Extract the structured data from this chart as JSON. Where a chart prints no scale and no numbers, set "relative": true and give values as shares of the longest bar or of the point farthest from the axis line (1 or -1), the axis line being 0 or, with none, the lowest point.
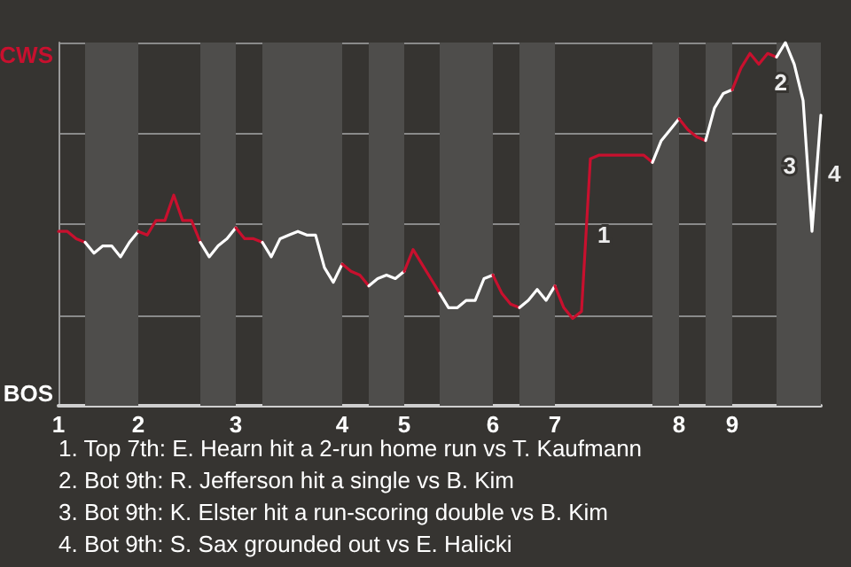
{
  "chart_data": {
    "type": "line",
    "categories": [
      "1",
      null,
      null,
      null,
      null,
      null,
      null,
      null,
      null,
      "2",
      null,
      null,
      null,
      null,
      null,
      null,
      null,
      null,
      null,
      null,
      "3",
      null,
      null,
      null,
      null,
      null,
      null,
      null,
      null,
      null,
      null,
      null,
      "4",
      null,
      null,
      null,
      null,
      null,
      null,
      "5",
      null,
      null,
      null,
      null,
      null,
      null,
      null,
      null,
      null,
      "6",
      null,
      null,
      null,
      null,
      null,
      null,
      "7",
      null,
      null,
      null,
      null,
      null,
      null,
      null,
      null,
      null,
      null,
      null,
      null,
      null,
      "8",
      null,
      null,
      null,
      null,
      null,
      "9",
      null,
      null,
      null,
      null,
      null,
      null,
      null,
      null,
      null,
      null
    ],
    "relative": true,
    "series": [
      {
        "color": "#c8102e",
        "values": [
          0.48,
          0.48,
          0.46,
          0.45,
          null,
          null,
          null,
          null,
          null,
          null,
          null,
          null,
          null,
          null,
          null,
          null,
          null,
          null,
          null,
          null,
          null,
          null,
          null,
          null,
          null,
          null,
          null,
          null,
          null,
          null,
          null,
          null,
          null,
          null,
          null,
          null,
          null,
          null,
          null,
          null,
          null,
          null,
          null,
          null,
          null,
          null,
          null,
          null,
          null,
          null,
          null,
          null,
          null,
          null,
          null,
          null,
          null,
          null,
          null,
          null,
          null,
          null,
          null,
          null,
          null,
          null,
          null,
          null,
          null,
          null,
          null,
          null,
          null,
          null,
          null,
          null,
          null,
          null,
          null,
          null,
          null,
          null,
          null,
          null,
          null,
          null,
          null
        ]
      },
      {
        "color": "#ffffff",
        "values": [
          null,
          null,
          null,
          0.45,
          0.42,
          0.44,
          0.44,
          0.41,
          0.45,
          0.48,
          null,
          null,
          null,
          null,
          null,
          null,
          null,
          null,
          null,
          null,
          null,
          null,
          null,
          null,
          null,
          null,
          null,
          null,
          null,
          null,
          null,
          null,
          null,
          null,
          null,
          null,
          null,
          null,
          null,
          null,
          null,
          null,
          null,
          null,
          null,
          null,
          null,
          null,
          null,
          null,
          null,
          null,
          null,
          null,
          null,
          null,
          null,
          null,
          null,
          null,
          null,
          null,
          null,
          null,
          null,
          null,
          null,
          null,
          null,
          null,
          null,
          null,
          null,
          null,
          null,
          null,
          null,
          null,
          null,
          null,
          null,
          null,
          null,
          null,
          null,
          null,
          null
        ]
      },
      {
        "color": "#c8102e",
        "values": [
          null,
          null,
          null,
          null,
          null,
          null,
          null,
          null,
          null,
          0.48,
          0.47,
          0.51,
          0.51,
          0.58,
          0.51,
          0.51,
          0.45,
          null,
          null,
          null,
          null,
          null,
          null,
          null,
          null,
          null,
          null,
          null,
          null,
          null,
          null,
          null,
          null,
          null,
          null,
          null,
          null,
          null,
          null,
          null,
          null,
          null,
          null,
          null,
          null,
          null,
          null,
          null,
          null,
          null,
          null,
          null,
          null,
          null,
          null,
          null,
          null,
          null,
          null,
          null,
          null,
          null,
          null,
          null,
          null,
          null,
          null,
          null,
          null,
          null,
          null,
          null,
          null,
          null,
          null,
          null,
          null,
          null,
          null,
          null,
          null,
          null,
          null,
          null,
          null,
          null,
          null
        ]
      },
      {
        "color": "#ffffff",
        "values": [
          null,
          null,
          null,
          null,
          null,
          null,
          null,
          null,
          null,
          null,
          null,
          null,
          null,
          null,
          null,
          null,
          0.45,
          0.41,
          0.44,
          0.46,
          0.49,
          null,
          null,
          null,
          null,
          null,
          null,
          null,
          null,
          null,
          null,
          null,
          null,
          null,
          null,
          null,
          null,
          null,
          null,
          null,
          null,
          null,
          null,
          null,
          null,
          null,
          null,
          null,
          null,
          null,
          null,
          null,
          null,
          null,
          null,
          null,
          null,
          null,
          null,
          null,
          null,
          null,
          null,
          null,
          null,
          null,
          null,
          null,
          null,
          null,
          null,
          null,
          null,
          null,
          null,
          null,
          null,
          null,
          null,
          null,
          null,
          null,
          null,
          null,
          null,
          null,
          null
        ]
      },
      {
        "color": "#c8102e",
        "values": [
          null,
          null,
          null,
          null,
          null,
          null,
          null,
          null,
          null,
          null,
          null,
          null,
          null,
          null,
          null,
          null,
          null,
          null,
          null,
          null,
          0.49,
          0.46,
          0.46,
          0.45,
          null,
          null,
          null,
          null,
          null,
          null,
          null,
          null,
          null,
          null,
          null,
          null,
          null,
          null,
          null,
          null,
          null,
          null,
          null,
          null,
          null,
          null,
          null,
          null,
          null,
          null,
          null,
          null,
          null,
          null,
          null,
          null,
          null,
          null,
          null,
          null,
          null,
          null,
          null,
          null,
          null,
          null,
          null,
          null,
          null,
          null,
          null,
          null,
          null,
          null,
          null,
          null,
          null,
          null,
          null,
          null,
          null,
          null,
          null,
          null,
          null,
          null,
          null
        ]
      },
      {
        "color": "#ffffff",
        "values": [
          null,
          null,
          null,
          null,
          null,
          null,
          null,
          null,
          null,
          null,
          null,
          null,
          null,
          null,
          null,
          null,
          null,
          null,
          null,
          null,
          null,
          null,
          null,
          0.45,
          0.41,
          0.46,
          0.47,
          0.48,
          0.47,
          0.47,
          0.38,
          0.34,
          0.39,
          null,
          null,
          null,
          null,
          null,
          null,
          null,
          null,
          null,
          null,
          null,
          null,
          null,
          null,
          null,
          null,
          null,
          null,
          null,
          null,
          null,
          null,
          null,
          null,
          null,
          null,
          null,
          null,
          null,
          null,
          null,
          null,
          null,
          null,
          null,
          null,
          null,
          null,
          null,
          null,
          null,
          null,
          null,
          null,
          null,
          null,
          null,
          null,
          null,
          null,
          null,
          null,
          null,
          null
        ]
      },
      {
        "color": "#c8102e",
        "values": [
          null,
          null,
          null,
          null,
          null,
          null,
          null,
          null,
          null,
          null,
          null,
          null,
          null,
          null,
          null,
          null,
          null,
          null,
          null,
          null,
          null,
          null,
          null,
          null,
          null,
          null,
          null,
          null,
          null,
          null,
          null,
          null,
          0.39,
          0.37,
          0.36,
          0.33,
          null,
          null,
          null,
          null,
          null,
          null,
          null,
          null,
          null,
          null,
          null,
          null,
          null,
          null,
          null,
          null,
          null,
          null,
          null,
          null,
          null,
          null,
          null,
          null,
          null,
          null,
          null,
          null,
          null,
          null,
          null,
          null,
          null,
          null,
          null,
          null,
          null,
          null,
          null,
          null,
          null,
          null,
          null,
          null,
          null,
          null,
          null,
          null,
          null,
          null,
          null
        ]
      },
      {
        "color": "#ffffff",
        "values": [
          null,
          null,
          null,
          null,
          null,
          null,
          null,
          null,
          null,
          null,
          null,
          null,
          null,
          null,
          null,
          null,
          null,
          null,
          null,
          null,
          null,
          null,
          null,
          null,
          null,
          null,
          null,
          null,
          null,
          null,
          null,
          null,
          null,
          null,
          null,
          0.33,
          0.35,
          0.36,
          0.35,
          0.37,
          null,
          null,
          null,
          null,
          null,
          null,
          null,
          null,
          null,
          null,
          null,
          null,
          null,
          null,
          null,
          null,
          null,
          null,
          null,
          null,
          null,
          null,
          null,
          null,
          null,
          null,
          null,
          null,
          null,
          null,
          null,
          null,
          null,
          null,
          null,
          null,
          null,
          null,
          null,
          null,
          null,
          null,
          null,
          null,
          null,
          null,
          null
        ]
      },
      {
        "color": "#c8102e",
        "values": [
          null,
          null,
          null,
          null,
          null,
          null,
          null,
          null,
          null,
          null,
          null,
          null,
          null,
          null,
          null,
          null,
          null,
          null,
          null,
          null,
          null,
          null,
          null,
          null,
          null,
          null,
          null,
          null,
          null,
          null,
          null,
          null,
          null,
          null,
          null,
          null,
          null,
          null,
          null,
          0.37,
          0.43,
          0.39,
          0.35,
          0.31,
          null,
          null,
          null,
          null,
          null,
          null,
          null,
          null,
          null,
          null,
          null,
          null,
          null,
          null,
          null,
          null,
          null,
          null,
          null,
          null,
          null,
          null,
          null,
          null,
          null,
          null,
          null,
          null,
          null,
          null,
          null,
          null,
          null,
          null,
          null,
          null,
          null,
          null,
          null,
          null,
          null,
          null,
          null
        ]
      },
      {
        "color": "#ffffff",
        "values": [
          null,
          null,
          null,
          null,
          null,
          null,
          null,
          null,
          null,
          null,
          null,
          null,
          null,
          null,
          null,
          null,
          null,
          null,
          null,
          null,
          null,
          null,
          null,
          null,
          null,
          null,
          null,
          null,
          null,
          null,
          null,
          null,
          null,
          null,
          null,
          null,
          null,
          null,
          null,
          null,
          null,
          null,
          null,
          0.31,
          0.27,
          0.27,
          0.29,
          0.29,
          0.35,
          0.36,
          null,
          null,
          null,
          null,
          null,
          null,
          null,
          null,
          null,
          null,
          null,
          null,
          null,
          null,
          null,
          null,
          null,
          null,
          null,
          null,
          null,
          null,
          null,
          null,
          null,
          null,
          null,
          null,
          null,
          null,
          null,
          null,
          null,
          null,
          null,
          null,
          null
        ]
      },
      {
        "color": "#c8102e",
        "values": [
          null,
          null,
          null,
          null,
          null,
          null,
          null,
          null,
          null,
          null,
          null,
          null,
          null,
          null,
          null,
          null,
          null,
          null,
          null,
          null,
          null,
          null,
          null,
          null,
          null,
          null,
          null,
          null,
          null,
          null,
          null,
          null,
          null,
          null,
          null,
          null,
          null,
          null,
          null,
          null,
          null,
          null,
          null,
          null,
          null,
          null,
          null,
          null,
          null,
          0.36,
          0.31,
          0.28,
          0.27,
          null,
          null,
          null,
          null,
          null,
          null,
          null,
          null,
          null,
          null,
          null,
          null,
          null,
          null,
          null,
          null,
          null,
          null,
          null,
          null,
          null,
          null,
          null,
          null,
          null,
          null,
          null,
          null,
          null,
          null,
          null,
          null,
          null,
          null
        ]
      },
      {
        "color": "#ffffff",
        "values": [
          null,
          null,
          null,
          null,
          null,
          null,
          null,
          null,
          null,
          null,
          null,
          null,
          null,
          null,
          null,
          null,
          null,
          null,
          null,
          null,
          null,
          null,
          null,
          null,
          null,
          null,
          null,
          null,
          null,
          null,
          null,
          null,
          null,
          null,
          null,
          null,
          null,
          null,
          null,
          null,
          null,
          null,
          null,
          null,
          null,
          null,
          null,
          null,
          null,
          null,
          null,
          null,
          0.27,
          0.29,
          0.32,
          0.29,
          0.33,
          null,
          null,
          null,
          null,
          null,
          null,
          null,
          null,
          null,
          null,
          null,
          null,
          null,
          null,
          null,
          null,
          null,
          null,
          null,
          null,
          null,
          null,
          null,
          null,
          null,
          null,
          null,
          null,
          null,
          null
        ]
      },
      {
        "color": "#c8102e",
        "values": [
          null,
          null,
          null,
          null,
          null,
          null,
          null,
          null,
          null,
          null,
          null,
          null,
          null,
          null,
          null,
          null,
          null,
          null,
          null,
          null,
          null,
          null,
          null,
          null,
          null,
          null,
          null,
          null,
          null,
          null,
          null,
          null,
          null,
          null,
          null,
          null,
          null,
          null,
          null,
          null,
          null,
          null,
          null,
          null,
          null,
          null,
          null,
          null,
          null,
          null,
          null,
          null,
          null,
          null,
          null,
          null,
          0.33,
          0.27,
          0.24,
          0.26,
          0.68,
          0.69,
          0.69,
          0.69,
          0.69,
          0.69,
          0.69,
          0.67,
          null,
          null,
          null,
          null,
          null,
          null,
          null,
          null,
          null,
          null,
          null,
          null,
          null,
          null,
          null,
          null,
          null,
          null,
          null
        ]
      },
      {
        "color": "#ffffff",
        "values": [
          null,
          null,
          null,
          null,
          null,
          null,
          null,
          null,
          null,
          null,
          null,
          null,
          null,
          null,
          null,
          null,
          null,
          null,
          null,
          null,
          null,
          null,
          null,
          null,
          null,
          null,
          null,
          null,
          null,
          null,
          null,
          null,
          null,
          null,
          null,
          null,
          null,
          null,
          null,
          null,
          null,
          null,
          null,
          null,
          null,
          null,
          null,
          null,
          null,
          null,
          null,
          null,
          null,
          null,
          null,
          null,
          null,
          null,
          null,
          null,
          null,
          null,
          null,
          null,
          null,
          null,
          null,
          0.67,
          0.73,
          0.76,
          0.79,
          null,
          null,
          null,
          null,
          null,
          null,
          null,
          null,
          null,
          null,
          null,
          null,
          null,
          null,
          null,
          null
        ]
      },
      {
        "color": "#c8102e",
        "values": [
          null,
          null,
          null,
          null,
          null,
          null,
          null,
          null,
          null,
          null,
          null,
          null,
          null,
          null,
          null,
          null,
          null,
          null,
          null,
          null,
          null,
          null,
          null,
          null,
          null,
          null,
          null,
          null,
          null,
          null,
          null,
          null,
          null,
          null,
          null,
          null,
          null,
          null,
          null,
          null,
          null,
          null,
          null,
          null,
          null,
          null,
          null,
          null,
          null,
          null,
          null,
          null,
          null,
          null,
          null,
          null,
          null,
          null,
          null,
          null,
          null,
          null,
          null,
          null,
          null,
          null,
          null,
          null,
          null,
          null,
          0.79,
          0.76,
          0.74,
          0.73,
          null,
          null,
          null,
          null,
          null,
          null,
          null,
          null,
          null,
          null,
          null,
          null,
          null
        ]
      },
      {
        "color": "#ffffff",
        "values": [
          null,
          null,
          null,
          null,
          null,
          null,
          null,
          null,
          null,
          null,
          null,
          null,
          null,
          null,
          null,
          null,
          null,
          null,
          null,
          null,
          null,
          null,
          null,
          null,
          null,
          null,
          null,
          null,
          null,
          null,
          null,
          null,
          null,
          null,
          null,
          null,
          null,
          null,
          null,
          null,
          null,
          null,
          null,
          null,
          null,
          null,
          null,
          null,
          null,
          null,
          null,
          null,
          null,
          null,
          null,
          null,
          null,
          null,
          null,
          null,
          null,
          null,
          null,
          null,
          null,
          null,
          null,
          null,
          null,
          null,
          null,
          null,
          null,
          0.73,
          0.82,
          0.86,
          0.87,
          null,
          null,
          null,
          null,
          null,
          null,
          null,
          null,
          null,
          null
        ]
      },
      {
        "color": "#c8102e",
        "values": [
          null,
          null,
          null,
          null,
          null,
          null,
          null,
          null,
          null,
          null,
          null,
          null,
          null,
          null,
          null,
          null,
          null,
          null,
          null,
          null,
          null,
          null,
          null,
          null,
          null,
          null,
          null,
          null,
          null,
          null,
          null,
          null,
          null,
          null,
          null,
          null,
          null,
          null,
          null,
          null,
          null,
          null,
          null,
          null,
          null,
          null,
          null,
          null,
          null,
          null,
          null,
          null,
          null,
          null,
          null,
          null,
          null,
          null,
          null,
          null,
          null,
          null,
          null,
          null,
          null,
          null,
          null,
          null,
          null,
          null,
          null,
          null,
          null,
          null,
          null,
          null,
          0.87,
          0.93,
          0.97,
          0.94,
          0.97,
          0.96,
          null,
          null,
          null,
          null,
          null
        ]
      },
      {
        "color": "#ffffff",
        "values": [
          null,
          null,
          null,
          null,
          null,
          null,
          null,
          null,
          null,
          null,
          null,
          null,
          null,
          null,
          null,
          null,
          null,
          null,
          null,
          null,
          null,
          null,
          null,
          null,
          null,
          null,
          null,
          null,
          null,
          null,
          null,
          null,
          null,
          null,
          null,
          null,
          null,
          null,
          null,
          null,
          null,
          null,
          null,
          null,
          null,
          null,
          null,
          null,
          null,
          null,
          null,
          null,
          null,
          null,
          null,
          null,
          null,
          null,
          null,
          null,
          null,
          null,
          null,
          null,
          null,
          null,
          null,
          null,
          null,
          null,
          null,
          null,
          null,
          null,
          null,
          null,
          null,
          null,
          null,
          null,
          null,
          0.96,
          1,
          0.94,
          0.84,
          0.48,
          0.8
        ]
      }
    ],
    "grid": "y",
    "marker": "none",
    "line_style": "solid",
    "annotations": [
      "CWS",
      "BOS",
      "1",
      "2",
      "3",
      "4",
      "1. Top 7th: E. Hearn hit a 2-run home run vs T. Kaufmann",
      "2. Bot 9th: R. Jefferson hit a single vs B. Kim",
      "3. Bot 9th: K. Elster hit a run-scoring double vs B. Kim",
      "4. Bot 9th: S. Sax grounded out vs E. Halicki"
    ]
  }
}
